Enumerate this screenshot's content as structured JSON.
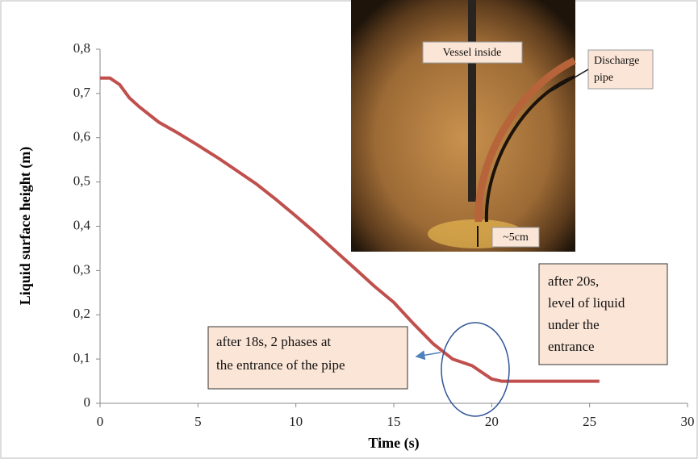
{
  "chart_data": {
    "type": "line",
    "y_label": "Liquid surface height (m)",
    "x_label": "Time (s)",
    "x": [
      0,
      0.5,
      1,
      1.5,
      2,
      3,
      4,
      5,
      6,
      7,
      8,
      9,
      10,
      11,
      12,
      13,
      14,
      15,
      16,
      17,
      18,
      19,
      19.5,
      20,
      20.5,
      21,
      22,
      23,
      24,
      25,
      25.5
    ],
    "series": [
      {
        "name": "Liquid surface height",
        "color": "#c0504d",
        "values": [
          0.735,
          0.735,
          0.72,
          0.69,
          0.67,
          0.635,
          0.61,
          0.583,
          0.555,
          0.525,
          0.495,
          0.46,
          0.423,
          0.385,
          0.345,
          0.305,
          0.265,
          0.228,
          0.18,
          0.135,
          0.1,
          0.085,
          0.07,
          0.055,
          0.05,
          0.05,
          0.05,
          0.05,
          0.05,
          0.05,
          0.05
        ]
      }
    ],
    "xlim": [
      0,
      30
    ],
    "xticks": [
      0,
      5,
      10,
      15,
      20,
      25,
      30
    ],
    "ylim": [
      0,
      0.8
    ],
    "yticks": [
      0,
      {
        "value": 0.1,
        "label": "0,1"
      },
      {
        "value": 0.2,
        "label": "0,2"
      },
      {
        "value": 0.3,
        "label": "0,3"
      },
      {
        "value": 0.4,
        "label": "0,4"
      },
      {
        "value": 0.5,
        "label": "0,5"
      },
      {
        "value": 0.6,
        "label": "0,6"
      },
      {
        "value": 0.7,
        "label": "0,7"
      },
      {
        "value": 0.8,
        "label": "0,8"
      }
    ],
    "grid": false,
    "annotations": [
      {
        "lines": [
          "after 18s, 2 phases at",
          "the entrance of the pipe"
        ]
      },
      {
        "lines": [
          "after 20s,",
          "level of liquid",
          "under the",
          "entrance"
        ]
      }
    ],
    "inset_labels": {
      "vessel": "Vessel inside",
      "pipe": [
        "Discharge",
        "pipe"
      ],
      "gap": "~5cm"
    }
  }
}
